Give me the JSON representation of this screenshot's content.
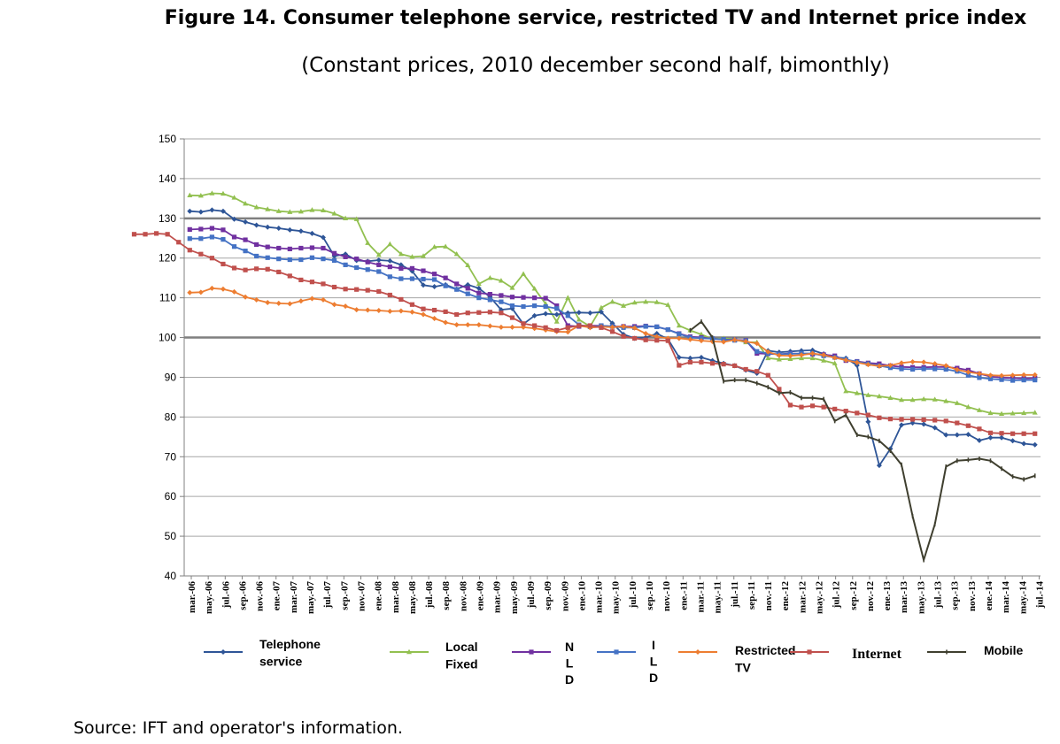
{
  "title": "Figure 14. Consumer telephone service, restricted TV and Internet price index",
  "subtitle": "(Constant prices, 2010 december second half, bimonthly)",
  "source": "Source: IFT and operator's information.",
  "chart_data": {
    "type": "line",
    "ylim": [
      40,
      150
    ],
    "yticks": [
      40,
      50,
      60,
      70,
      80,
      90,
      100,
      110,
      120,
      130,
      140,
      150
    ],
    "bold_gridlines": [
      100,
      130
    ],
    "grid": true,
    "legend_position": "bottom",
    "x_tick_labels": [
      "mar.-06",
      "may.-06",
      "jul.-06",
      "sep.-06",
      "nov.-06",
      "ene.-07",
      "mar.-07",
      "may.-07",
      "jul.-07",
      "sep.-07",
      "nov.-07",
      "ene.-08",
      "mar.-08",
      "may.-08",
      "jul.-08",
      "sep.-08",
      "nov.-08",
      "ene.-09",
      "mar.-09",
      "may.-09",
      "jul.-09",
      "sep.-09",
      "nov.-09",
      "ene.-10",
      "mar.-10",
      "may.-10",
      "jul.-10",
      "sep.-10",
      "nov.-10",
      "ene.-11",
      "mar.-11",
      "may.-11",
      "jul.-11",
      "sep.-11",
      "nov.-11",
      "ene.-12",
      "mar.-12",
      "may.-12",
      "jul.-12",
      "sep.-12",
      "nov.-12",
      "ene.-13",
      "mar.-13",
      "may.-13",
      "jul.-13",
      "sep.-13",
      "nov.-13",
      "ene.-14",
      "mar.-14",
      "may.-14",
      "jul.-14"
    ],
    "series": [
      {
        "name": "Telephone service",
        "legend_lines": [
          "Telephone",
          "service"
        ],
        "color": "#2E5597",
        "marker": "diamond",
        "values": [
          131.8,
          131.6,
          132.1,
          131.8,
          129.8,
          129.1,
          128.3,
          127.8,
          127.5,
          127.1,
          126.8,
          126.2,
          125.2,
          120.5,
          121.0,
          119.4,
          119.2,
          119.5,
          119.3,
          118.3,
          116.7,
          113.2,
          112.8,
          113.3,
          112.2,
          113.3,
          112.4,
          110.2,
          107.0,
          107.3,
          103.4,
          105.5,
          106.0,
          105.8,
          106.2,
          106.3,
          106.2,
          106.4,
          103.6,
          100.8,
          99.8,
          100.0,
          101.0,
          99.6,
          95.0,
          94.8,
          95.0,
          94.2,
          93.5,
          92.9,
          91.8,
          91.0,
          96.7,
          96.3,
          96.5,
          96.7,
          96.8,
          95.9,
          95.0,
          94.8,
          93.0,
          78.8,
          67.8,
          72.0,
          78.0,
          78.5,
          78.2,
          77.3,
          75.5,
          75.5,
          75.6,
          74.1,
          74.8,
          74.8,
          74.0,
          73.3,
          73.0
        ]
      },
      {
        "name": "Local Fixed",
        "legend_lines": [
          "Local",
          "Fixed"
        ],
        "color": "#92C050",
        "marker": "triangle",
        "values": [
          135.8,
          135.7,
          136.3,
          136.2,
          135.2,
          133.7,
          132.8,
          132.3,
          131.8,
          131.6,
          131.7,
          132.1,
          132.0,
          131.2,
          130.0,
          129.8,
          123.8,
          120.8,
          123.5,
          121.0,
          120.3,
          120.5,
          122.8,
          122.9,
          121.0,
          118.2,
          113.5,
          115.0,
          114.3,
          112.5,
          116.0,
          112.3,
          108.5,
          104.0,
          110.0,
          104.5,
          102.8,
          107.5,
          109.0,
          108.0,
          108.8,
          109.0,
          108.9,
          108.2,
          103.0,
          101.8,
          100.8,
          99.6,
          99.8,
          99.5,
          98.8,
          98.8,
          94.8,
          94.5,
          94.6,
          94.8,
          94.8,
          94.2,
          93.5,
          86.5,
          86.0,
          85.5,
          85.2,
          84.8,
          84.3,
          84.3,
          84.5,
          84.4,
          84.0,
          83.5,
          82.5,
          81.7,
          81.0,
          80.8,
          80.9,
          81.0,
          81.1
        ]
      },
      {
        "name": "NLD",
        "legend_lines": [
          "N",
          "L",
          "D"
        ],
        "color": "#7030A0",
        "marker": "square",
        "values": [
          127.2,
          127.3,
          127.5,
          127.1,
          125.3,
          124.6,
          123.4,
          122.8,
          122.5,
          122.3,
          122.5,
          122.6,
          122.5,
          121.2,
          120.3,
          119.8,
          119.0,
          118.3,
          117.8,
          117.4,
          117.4,
          116.8,
          116.0,
          115.0,
          113.5,
          112.4,
          111.2,
          110.9,
          110.6,
          110.2,
          110.1,
          110.0,
          109.9,
          108.0,
          103.0,
          102.8,
          103.0,
          103.0,
          102.8,
          102.8,
          102.8,
          102.9,
          102.7,
          102.0,
          101.0,
          100.2,
          100.0,
          99.7,
          99.5,
          99.4,
          99.3,
          96.0,
          95.9,
          95.8,
          96.0,
          95.9,
          95.8,
          95.7,
          95.4,
          94.2,
          94.0,
          93.6,
          93.4,
          92.9,
          92.6,
          92.5,
          92.5,
          92.6,
          92.6,
          92.3,
          91.8,
          90.9,
          90.2,
          89.9,
          89.8,
          89.7,
          89.8
        ]
      },
      {
        "name": "ILD",
        "legend_lines": [
          "I",
          "L",
          "D"
        ],
        "color": "#4472C4",
        "marker": "square",
        "values": [
          124.9,
          124.9,
          125.3,
          124.7,
          122.9,
          121.8,
          120.5,
          120.1,
          119.8,
          119.6,
          119.6,
          120.1,
          119.8,
          119.4,
          118.3,
          117.6,
          117.1,
          116.6,
          115.3,
          114.8,
          114.8,
          114.7,
          114.6,
          113.0,
          112.1,
          111.0,
          110.0,
          109.5,
          109.0,
          108.0,
          107.8,
          108.0,
          107.8,
          107.3,
          105.5,
          103.2,
          102.7,
          103.0,
          102.8,
          102.5,
          102.5,
          102.8,
          102.7,
          102.0,
          100.9,
          100.0,
          99.8,
          99.7,
          99.5,
          99.3,
          99.2,
          96.5,
          96.0,
          95.8,
          95.9,
          96.0,
          96.0,
          95.4,
          95.0,
          94.5,
          93.9,
          93.4,
          92.9,
          92.4,
          92.1,
          92.0,
          92.1,
          92.1,
          92.0,
          91.5,
          90.5,
          89.9,
          89.6,
          89.4,
          89.2,
          89.3,
          89.3
        ]
      },
      {
        "name": "Restricted TV",
        "legend_lines": [
          "Restricted",
          "TV"
        ],
        "color": "#ED7D31",
        "marker": "diamond",
        "values": [
          111.3,
          111.4,
          112.4,
          112.2,
          111.5,
          110.2,
          109.5,
          108.8,
          108.6,
          108.5,
          109.2,
          109.8,
          109.5,
          108.3,
          107.9,
          107.0,
          106.9,
          106.8,
          106.6,
          106.7,
          106.4,
          105.8,
          104.8,
          103.8,
          103.2,
          103.2,
          103.2,
          102.9,
          102.6,
          102.6,
          102.6,
          102.3,
          101.9,
          101.5,
          101.4,
          103.0,
          102.5,
          102.7,
          102.6,
          102.8,
          102.4,
          101.0,
          100.2,
          99.8,
          99.8,
          99.5,
          99.2,
          99.0,
          98.9,
          99.4,
          99.0,
          98.5,
          96.4,
          95.5,
          95.4,
          95.6,
          96.0,
          95.6,
          94.9,
          94.3,
          93.7,
          93.2,
          92.8,
          93.0,
          93.6,
          93.9,
          93.8,
          93.4,
          92.9,
          91.9,
          91.3,
          90.9,
          90.5,
          90.4,
          90.5,
          90.6,
          90.6
        ]
      },
      {
        "name": "Internet",
        "legend_lines": [
          "Internet"
        ],
        "color": "#C0504D",
        "marker": "square",
        "values": [
          126.0,
          126.0,
          126.2,
          126.0,
          124.0,
          122.0,
          121.0,
          120.0,
          118.5,
          117.5,
          117.0,
          117.3,
          117.2,
          116.5,
          115.5,
          114.5,
          114.0,
          113.5,
          112.7,
          112.2,
          112.1,
          111.9,
          111.6,
          110.7,
          109.6,
          108.3,
          107.2,
          106.9,
          106.5,
          105.8,
          106.2,
          106.3,
          106.4,
          106.2,
          105.0,
          103.5,
          103.0,
          102.5,
          101.8,
          102.5,
          103.0,
          103.0,
          102.5,
          101.5,
          100.3,
          99.8,
          99.4,
          99.3,
          99.2,
          93.0,
          93.8,
          93.8,
          93.5,
          93.3,
          92.9,
          92.0,
          91.5,
          90.5,
          87.0,
          83.0,
          82.5,
          82.8,
          82.5,
          82.0,
          81.5,
          81.0,
          80.5,
          79.8,
          79.5,
          79.4,
          79.4,
          79.3,
          79.2,
          79.0,
          78.5,
          77.8,
          77.0,
          76.0,
          75.9,
          75.8,
          75.8,
          75.8
        ]
      },
      {
        "name": "Mobile",
        "legend_lines": [
          "Mobile"
        ],
        "color": "#3F3F2F",
        "marker": "dash",
        "values": [
          101.8,
          104.0,
          100.0,
          89.0,
          89.3,
          89.3,
          88.5,
          87.5,
          86.0,
          86.2,
          84.8,
          84.8,
          84.5,
          79.0,
          80.5,
          75.5,
          75.0,
          74.0,
          71.5,
          68.0,
          55.0,
          44.0,
          53.0,
          67.5,
          69.0,
          69.2,
          69.5,
          69.0,
          67.0,
          65.0,
          64.3,
          65.2
        ]
      }
    ]
  }
}
